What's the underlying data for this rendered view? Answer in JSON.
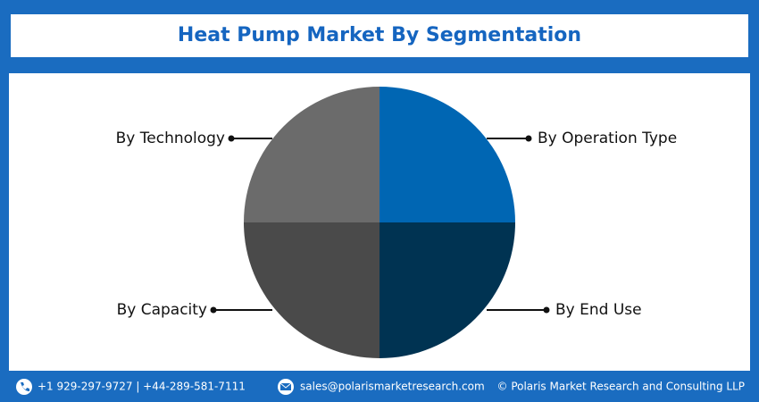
{
  "chart_data": {
    "type": "pie",
    "title": "Heat Pump Market By Segmentation",
    "categories": [
      "By Operation Type",
      "By End Use",
      "By Capacity",
      "By Technology"
    ],
    "values": [
      25,
      25,
      25,
      25
    ],
    "colors": [
      "#0066b3",
      "#003352",
      "#4a4a4a",
      "#6b6b6b"
    ]
  },
  "footer": {
    "phone": "+1 929-297-9727 | +44-289-581-7111",
    "email": "sales@polarismarketresearch.com",
    "copyright": "© Polaris Market Research and Consulting LLP"
  }
}
